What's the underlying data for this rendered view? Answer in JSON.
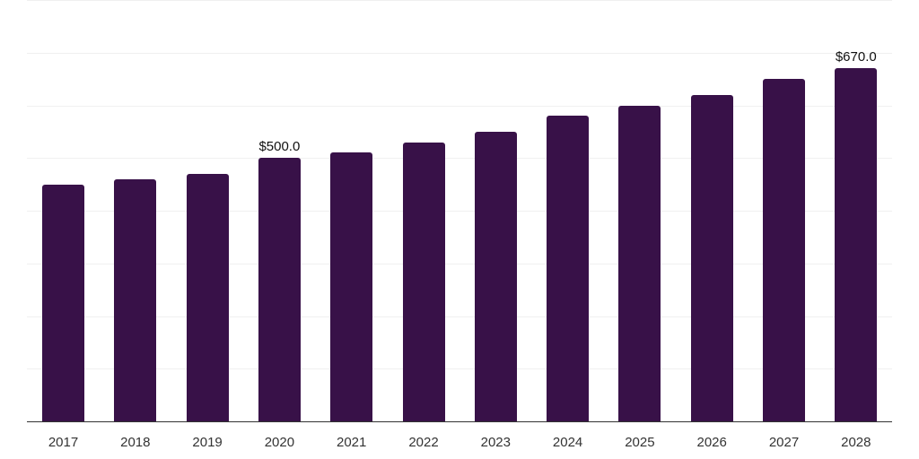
{
  "chart_data": {
    "type": "bar",
    "title": "",
    "xlabel": "",
    "ylabel": "",
    "categories": [
      "2017",
      "2018",
      "2019",
      "2020",
      "2021",
      "2022",
      "2023",
      "2024",
      "2025",
      "2026",
      "2027",
      "2028"
    ],
    "values": [
      450,
      460,
      470,
      500,
      510,
      530,
      550,
      580,
      600,
      620,
      650,
      670
    ],
    "data_labels": [
      {
        "category": "2020",
        "text": "$500.0"
      },
      {
        "category": "2028",
        "text": "$670.0"
      }
    ],
    "ylim": [
      0,
      800
    ],
    "grid": true,
    "gridline_step": 100,
    "legend": null,
    "bar_color": "#381148",
    "grid_color": "#f0f0f0",
    "axis_color": "#333333"
  }
}
